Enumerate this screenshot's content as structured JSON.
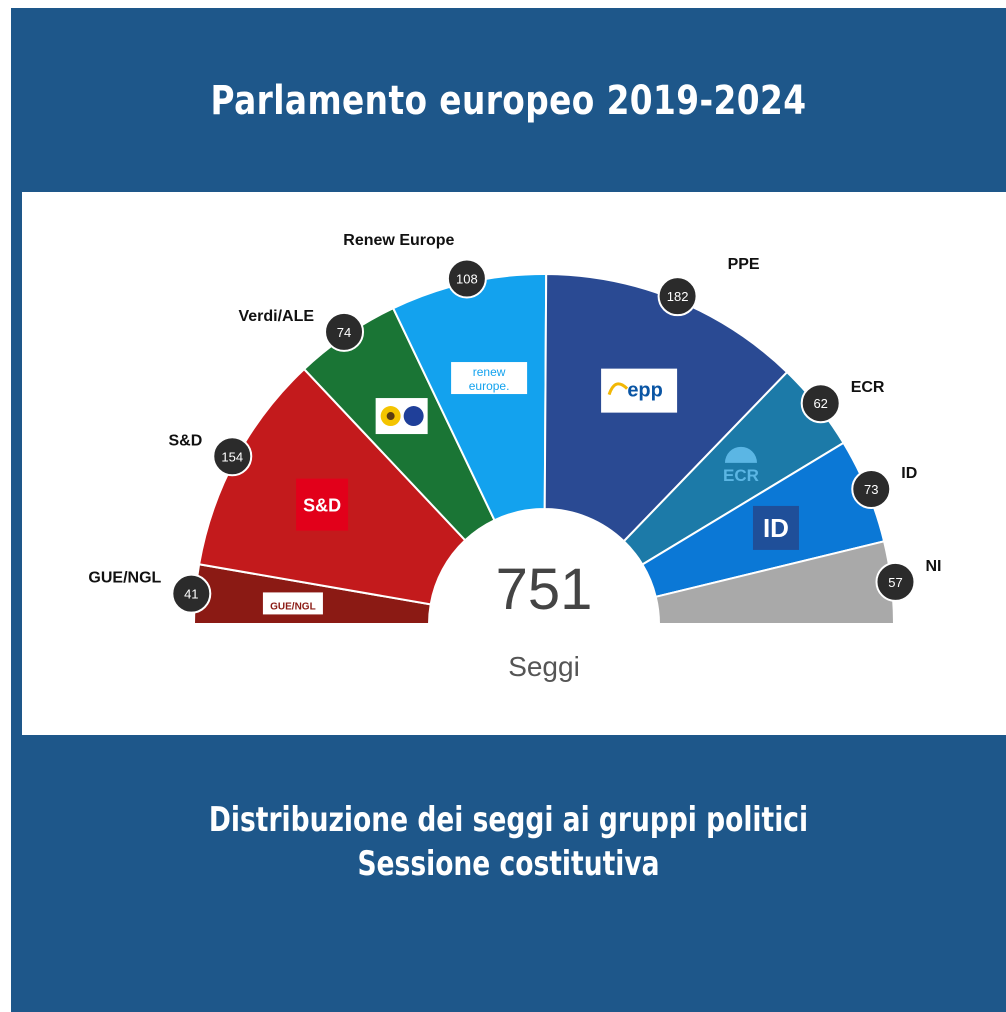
{
  "page": {
    "title": "Parlamento europeo 2019-2024",
    "subtitle_line1": "Distribuzione dei seggi ai gruppi politici",
    "subtitle_line2": "Sessione costitutiva"
  },
  "chart_data": {
    "type": "pie",
    "variant": "hemicycle",
    "title": "Parlamento europeo 2019-2024",
    "total": 751,
    "total_label": "Seggi",
    "series": [
      {
        "name": "GUE/NGL",
        "value": 41,
        "color": "#8b1a14",
        "logo_text": "GUE/NGL"
      },
      {
        "name": "S&D",
        "value": 154,
        "color": "#c31a1c",
        "logo_text": "S&D"
      },
      {
        "name": "Verdi/ALE",
        "value": 74,
        "color": "#1a7535",
        "logo_text": ""
      },
      {
        "name": "Renew Europe",
        "value": 108,
        "color": "#13a2ee",
        "logo_text": "renew europe."
      },
      {
        "name": "PPE",
        "value": 182,
        "color": "#2a4a93",
        "logo_text": "epp"
      },
      {
        "name": "ECR",
        "value": 62,
        "color": "#1c7aa8",
        "logo_text": "ECR"
      },
      {
        "name": "ID",
        "value": 73,
        "color": "#0b78d6",
        "logo_text": "ID"
      },
      {
        "name": "NI",
        "value": 57,
        "color": "#a9a9a9",
        "logo_text": ""
      }
    ]
  }
}
